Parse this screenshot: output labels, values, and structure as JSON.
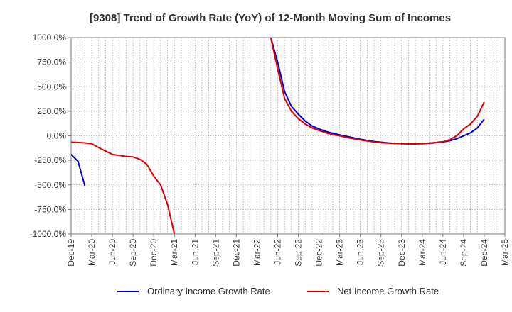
{
  "chart_data": {
    "type": "line",
    "title": "[9308]  Trend of Growth Rate (YoY) of 12-Month Moving Sum of Incomes",
    "xlabel": "",
    "ylabel": "",
    "ylim": [
      -1000,
      1000
    ],
    "y_ticks": [
      1000,
      750,
      500,
      250,
      0,
      -250,
      -500,
      -750,
      -1000
    ],
    "y_tick_labels": [
      "1000.0%",
      "750.0%",
      "500.0%",
      "250.0%",
      "0.0%",
      "-250.0%",
      "-500.0%",
      "-750.0%",
      "-1000.0%"
    ],
    "x_ticks": [
      "2019-12",
      "2020-03",
      "2020-06",
      "2020-09",
      "2020-12",
      "2021-03",
      "2021-06",
      "2021-09",
      "2021-12",
      "2022-03",
      "2022-06",
      "2022-09",
      "2022-12",
      "2023-03",
      "2023-06",
      "2023-09",
      "2023-12",
      "2024-03",
      "2024-06",
      "2024-09",
      "2024-12",
      "2025-03"
    ],
    "x_tick_labels": [
      "Dec-19",
      "Mar-20",
      "Jun-20",
      "Sep-20",
      "Dec-20",
      "Mar-21",
      "Jun-21",
      "Sep-21",
      "Dec-21",
      "Mar-22",
      "Jun-22",
      "Sep-22",
      "Dec-22",
      "Mar-23",
      "Jun-23",
      "Sep-23",
      "Dec-23",
      "Mar-24",
      "Jun-24",
      "Sep-24",
      "Dec-24",
      "Mar-25"
    ],
    "grid": true,
    "legend_position": "bottom",
    "series": [
      {
        "name": "Ordinary Income Growth Rate",
        "color": "#0000cc",
        "points": [
          [
            "2019-12",
            -190
          ],
          [
            "2020-01",
            -260
          ],
          [
            "2020-02",
            -510
          ],
          [
            "2022-05",
            1000
          ],
          [
            "2022-06",
            750
          ],
          [
            "2022-07",
            450
          ],
          [
            "2022-08",
            300
          ],
          [
            "2022-09",
            220
          ],
          [
            "2022-10",
            150
          ],
          [
            "2022-11",
            100
          ],
          [
            "2022-12",
            70
          ],
          [
            "2023-01",
            45
          ],
          [
            "2023-02",
            25
          ],
          [
            "2023-03",
            10
          ],
          [
            "2023-04",
            -5
          ],
          [
            "2023-05",
            -20
          ],
          [
            "2023-06",
            -35
          ],
          [
            "2023-07",
            -48
          ],
          [
            "2023-08",
            -58
          ],
          [
            "2023-09",
            -65
          ],
          [
            "2023-10",
            -72
          ],
          [
            "2023-11",
            -77
          ],
          [
            "2023-12",
            -80
          ],
          [
            "2024-01",
            -82
          ],
          [
            "2024-02",
            -82
          ],
          [
            "2024-03",
            -80
          ],
          [
            "2024-04",
            -76
          ],
          [
            "2024-05",
            -70
          ],
          [
            "2024-06",
            -62
          ],
          [
            "2024-07",
            -50
          ],
          [
            "2024-08",
            -30
          ],
          [
            "2024-09",
            0
          ],
          [
            "2024-10",
            30
          ],
          [
            "2024-11",
            80
          ],
          [
            "2024-12",
            170
          ]
        ]
      },
      {
        "name": "Net Income Growth Rate",
        "color": "#dd0000",
        "points": [
          [
            "2019-12",
            -65
          ],
          [
            "2020-01",
            -68
          ],
          [
            "2020-02",
            -72
          ],
          [
            "2020-03",
            -80
          ],
          [
            "2020-04",
            -120
          ],
          [
            "2020-05",
            -155
          ],
          [
            "2020-06",
            -190
          ],
          [
            "2020-07",
            -200
          ],
          [
            "2020-08",
            -210
          ],
          [
            "2020-09",
            -215
          ],
          [
            "2020-10",
            -240
          ],
          [
            "2020-11",
            -290
          ],
          [
            "2020-12",
            -410
          ],
          [
            "2021-01",
            -500
          ],
          [
            "2021-02",
            -700
          ],
          [
            "2021-03",
            -1000
          ],
          [
            "2022-05",
            1000
          ],
          [
            "2022-06",
            680
          ],
          [
            "2022-07",
            380
          ],
          [
            "2022-08",
            250
          ],
          [
            "2022-09",
            175
          ],
          [
            "2022-10",
            120
          ],
          [
            "2022-11",
            80
          ],
          [
            "2022-12",
            55
          ],
          [
            "2023-01",
            30
          ],
          [
            "2023-02",
            12
          ],
          [
            "2023-03",
            0
          ],
          [
            "2023-04",
            -15
          ],
          [
            "2023-05",
            -30
          ],
          [
            "2023-06",
            -42
          ],
          [
            "2023-07",
            -52
          ],
          [
            "2023-08",
            -62
          ],
          [
            "2023-09",
            -70
          ],
          [
            "2023-10",
            -75
          ],
          [
            "2023-11",
            -78
          ],
          [
            "2023-12",
            -80
          ],
          [
            "2024-01",
            -80
          ],
          [
            "2024-02",
            -80
          ],
          [
            "2024-03",
            -78
          ],
          [
            "2024-04",
            -74
          ],
          [
            "2024-05",
            -68
          ],
          [
            "2024-06",
            -60
          ],
          [
            "2024-07",
            -40
          ],
          [
            "2024-08",
            0
          ],
          [
            "2024-09",
            70
          ],
          [
            "2024-10",
            120
          ],
          [
            "2024-11",
            200
          ],
          [
            "2024-12",
            345
          ]
        ]
      }
    ]
  }
}
